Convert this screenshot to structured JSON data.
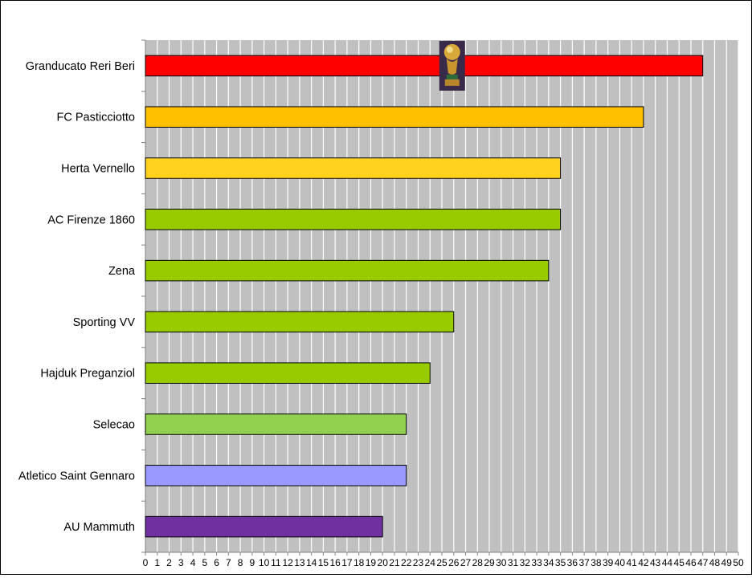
{
  "chart_data": {
    "type": "bar",
    "orientation": "horizontal",
    "categories": [
      "Granducato Reri Beri",
      "FC Pasticciotto",
      "Herta Vernello",
      "AC Firenze 1860",
      "Zena",
      "Sporting VV",
      "Hajduk Preganziol",
      "Selecao",
      "Atletico Saint Gennaro",
      "AU Mammuth"
    ],
    "values": [
      47,
      42,
      35,
      35,
      34,
      26,
      24,
      22,
      22,
      20
    ],
    "colors": [
      "#ff0000",
      "#ffc000",
      "#ffd21f",
      "#99cc00",
      "#99cc00",
      "#99cc00",
      "#99cc00",
      "#92d050",
      "#9999ff",
      "#7030a0"
    ],
    "xlim": [
      0,
      50
    ],
    "xticks": [
      0,
      1,
      2,
      3,
      4,
      5,
      6,
      7,
      8,
      9,
      10,
      11,
      12,
      13,
      14,
      15,
      16,
      17,
      18,
      19,
      20,
      21,
      22,
      23,
      24,
      25,
      26,
      27,
      28,
      29,
      30,
      31,
      32,
      33,
      34,
      35,
      36,
      37,
      38,
      39,
      40,
      41,
      42,
      43,
      44,
      45,
      46,
      47,
      48,
      49,
      50
    ],
    "plot_background": "#c0c0c0",
    "gridlines": "vertical",
    "gridline_color": "#ffffff",
    "annotation_icon": "trophy-icon",
    "annotation_at": {
      "category": "Granducato Reri Beri",
      "x": 26
    },
    "title": "",
    "xlabel": "",
    "ylabel": ""
  }
}
